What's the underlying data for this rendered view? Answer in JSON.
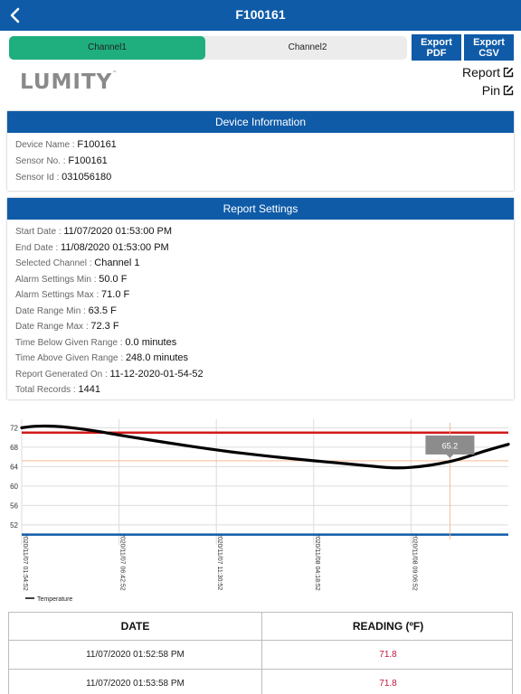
{
  "nav": {
    "title": "F100161"
  },
  "tabs": [
    {
      "label": "Channel1",
      "active": true
    },
    {
      "label": "Channel2",
      "active": false
    }
  ],
  "exports": [
    {
      "line1": "Export",
      "line2": "PDF"
    },
    {
      "line1": "Export",
      "line2": "CSV"
    }
  ],
  "logo": {
    "text": "LUMITY",
    "mark": "™"
  },
  "actions": {
    "report_label": "Report",
    "pin_label": "Pin"
  },
  "device_info": {
    "header": "Device Information",
    "rows": [
      {
        "label": "Device Name",
        "value": "F100161"
      },
      {
        "label": "Sensor No.",
        "value": "F100161"
      },
      {
        "label": "Sensor Id",
        "value": "031056180"
      }
    ]
  },
  "report_settings": {
    "header": "Report Settings",
    "rows": [
      {
        "label": "Start Date",
        "value": "11/07/2020 01:53:00 PM"
      },
      {
        "label": "End Date",
        "value": "11/08/2020 01:53:00 PM"
      },
      {
        "label": "Selected Channel",
        "value": "Channel 1"
      },
      {
        "label": "Alarm Settings Min",
        "value": "50.0 F"
      },
      {
        "label": "Alarm Settings Max",
        "value": "71.0 F"
      },
      {
        "label": "Date Range Min",
        "value": "63.5 F"
      },
      {
        "label": "Date Range Max",
        "value": "72.3 F"
      },
      {
        "label": "Time Below Given Range",
        "value": "0.0 minutes"
      },
      {
        "label": "Time Above Given Range",
        "value": "248.0 minutes"
      },
      {
        "label": "Report Generated On",
        "value": "11-12-2020-01-54-52"
      },
      {
        "label": "Total Records",
        "value": "1441"
      }
    ]
  },
  "chart_data": {
    "type": "line",
    "ylim": [
      49,
      73
    ],
    "yticks": [
      "72",
      "68",
      "64",
      "60",
      "56",
      "52"
    ],
    "xtick_labels": [
      "2020/11/07 01:54:52",
      "2020/11/07 06:42:52",
      "2020/11/07 11:30:52",
      "2020/11/08 04:18:52",
      "2020/11/08 09:06:52"
    ],
    "series": [
      {
        "name": "Temperature",
        "color": "#000000",
        "points": [
          [
            0.0,
            72.0
          ],
          [
            0.03,
            72.4
          ],
          [
            0.08,
            72.3
          ],
          [
            0.15,
            71.4
          ],
          [
            0.2,
            70.5
          ],
          [
            0.3,
            68.9
          ],
          [
            0.4,
            67.4
          ],
          [
            0.5,
            66.2
          ],
          [
            0.6,
            65.2
          ],
          [
            0.7,
            64.3
          ],
          [
            0.75,
            63.8
          ],
          [
            0.78,
            63.7
          ],
          [
            0.82,
            64.0
          ],
          [
            0.86,
            64.6
          ],
          [
            0.9,
            65.5
          ],
          [
            0.95,
            67.2
          ],
          [
            1.0,
            68.6
          ]
        ]
      }
    ],
    "thresholds": [
      {
        "value": 71.0,
        "color": "#d11a1a"
      },
      {
        "value": 50.0,
        "color": "#0f5ba8"
      }
    ],
    "tooltip": {
      "text": "65.2",
      "value": 65.2
    },
    "legend": "bottom-left",
    "grid": true
  },
  "table": {
    "headers": [
      "DATE",
      "READING (ºF)"
    ],
    "rows": [
      [
        "11/07/2020 01:52:58 PM",
        "71.8"
      ],
      [
        "11/07/2020 01:53:58 PM",
        "71.8"
      ]
    ]
  }
}
